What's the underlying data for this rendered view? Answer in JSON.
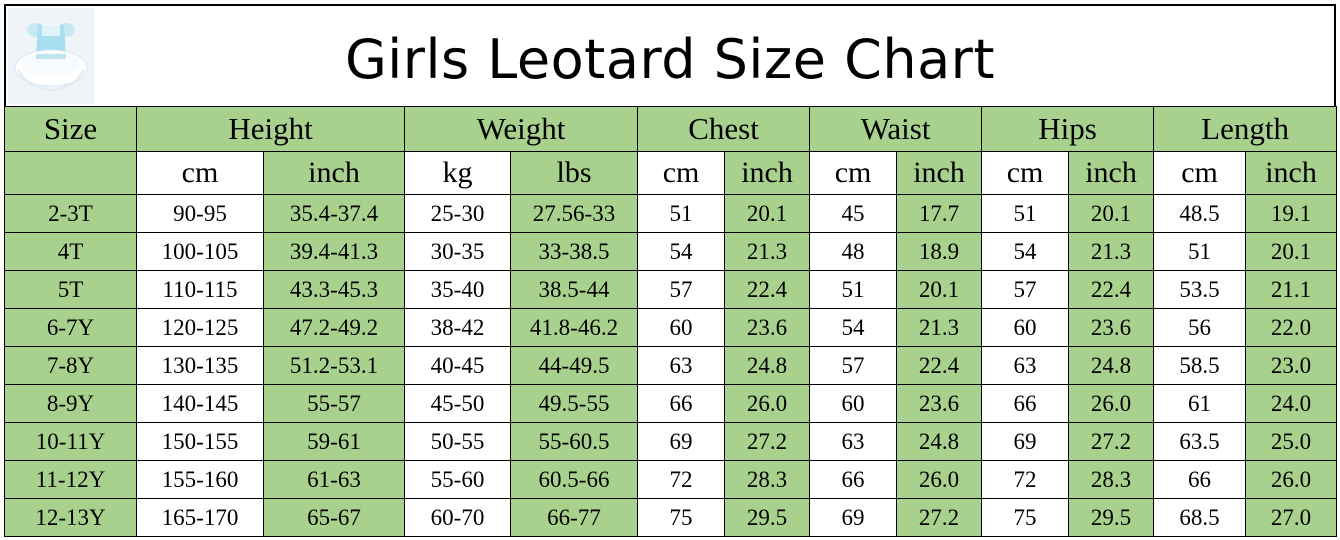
{
  "title": "Girls Leotard Size Chart",
  "thumbnail": {
    "icon": "leotard-dress-icon"
  },
  "groups": [
    {
      "label": "Size",
      "span": 1
    },
    {
      "label": "Height",
      "span": 2
    },
    {
      "label": "Weight",
      "span": 2
    },
    {
      "label": "Chest",
      "span": 2
    },
    {
      "label": "Waist",
      "span": 2
    },
    {
      "label": "Hips",
      "span": 2
    },
    {
      "label": "Length",
      "span": 2
    }
  ],
  "units": [
    "",
    "cm",
    "inch",
    "kg",
    "lbs",
    "cm",
    "inch",
    "cm",
    "inch",
    "cm",
    "inch",
    "cm",
    "inch"
  ],
  "rows": [
    [
      "2-3T",
      "90-95",
      "35.4-37.4",
      "25-30",
      "27.56-33",
      "51",
      "20.1",
      "45",
      "17.7",
      "51",
      "20.1",
      "48.5",
      "19.1"
    ],
    [
      "4T",
      "100-105",
      "39.4-41.3",
      "30-35",
      "33-38.5",
      "54",
      "21.3",
      "48",
      "18.9",
      "54",
      "21.3",
      "51",
      "20.1"
    ],
    [
      "5T",
      "110-115",
      "43.3-45.3",
      "35-40",
      "38.5-44",
      "57",
      "22.4",
      "51",
      "20.1",
      "57",
      "22.4",
      "53.5",
      "21.1"
    ],
    [
      "6-7Y",
      "120-125",
      "47.2-49.2",
      "38-42",
      "41.8-46.2",
      "60",
      "23.6",
      "54",
      "21.3",
      "60",
      "23.6",
      "56",
      "22.0"
    ],
    [
      "7-8Y",
      "130-135",
      "51.2-53.1",
      "40-45",
      "44-49.5",
      "63",
      "24.8",
      "57",
      "22.4",
      "63",
      "24.8",
      "58.5",
      "23.0"
    ],
    [
      "8-9Y",
      "140-145",
      "55-57",
      "45-50",
      "49.5-55",
      "66",
      "26.0",
      "60",
      "23.6",
      "66",
      "26.0",
      "61",
      "24.0"
    ],
    [
      "10-11Y",
      "150-155",
      "59-61",
      "50-55",
      "55-60.5",
      "69",
      "27.2",
      "63",
      "24.8",
      "69",
      "27.2",
      "63.5",
      "25.0"
    ],
    [
      "11-12Y",
      "155-160",
      "61-63",
      "55-60",
      "60.5-66",
      "72",
      "28.3",
      "66",
      "26.0",
      "72",
      "28.3",
      "66",
      "26.0"
    ],
    [
      "12-13Y",
      "165-170",
      "65-67",
      "60-70",
      "66-77",
      "75",
      "29.5",
      "69",
      "27.2",
      "75",
      "29.5",
      "68.5",
      "27.0"
    ]
  ],
  "colors": {
    "green": "#a9d18e",
    "white": "#ffffff",
    "border": "#000000"
  }
}
